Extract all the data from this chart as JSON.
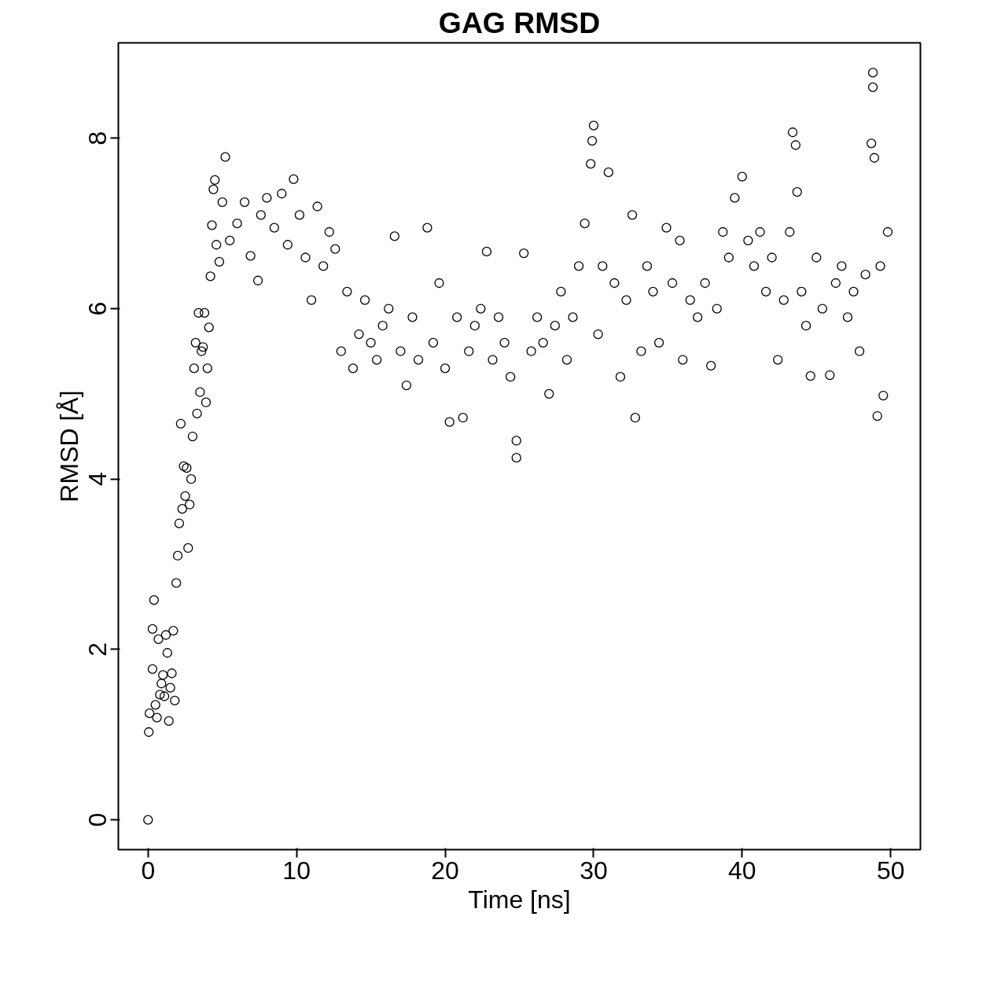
{
  "chart_data": {
    "type": "scatter",
    "title": "GAG RMSD",
    "xlabel": "Time [ns]",
    "ylabel": "RMSD [Å]",
    "xlim": [
      -2,
      52
    ],
    "ylim": [
      -0.35,
      9.12
    ],
    "xticks": [
      0,
      10,
      20,
      30,
      40,
      50
    ],
    "yticks": [
      0,
      2,
      4,
      6,
      8
    ],
    "marker": "circle",
    "series": [
      {
        "color": "#000000",
        "x": [
          0,
          0.05,
          0.1,
          0.3,
          0.3,
          0.4,
          0.5,
          0.6,
          0.7,
          0.8,
          0.9,
          1.0,
          1.1,
          1.2,
          1.3,
          1.4,
          1.5,
          1.6,
          1.7,
          1.8,
          1.9,
          2.0,
          2.1,
          2.2,
          2.3,
          2.4,
          2.5,
          2.6,
          2.7,
          2.8,
          2.9,
          3.0,
          3.1,
          3.2,
          3.3,
          3.4,
          3.5,
          3.6,
          3.7,
          3.8,
          3.9,
          4.0,
          4.1,
          4.2,
          4.3,
          4.4,
          4.5,
          4.6,
          4.8,
          5.0,
          5.2,
          5.5,
          6.0,
          6.5,
          6.9,
          7.4,
          7.6,
          8.0,
          8.5,
          9.0,
          9.4,
          9.8,
          10.2,
          10.6,
          11.0,
          11.4,
          11.8,
          12.2,
          12.6,
          13.0,
          13.4,
          13.8,
          14.2,
          14.6,
          15.0,
          15.4,
          15.8,
          16.2,
          16.6,
          17.0,
          17.4,
          17.8,
          18.2,
          18.8,
          19.2,
          19.6,
          20.0,
          20.3,
          20.8,
          21.2,
          21.6,
          22.0,
          22.4,
          22.8,
          23.2,
          23.6,
          24.0,
          24.4,
          24.8,
          24.8,
          25.3,
          25.8,
          26.2,
          26.6,
          27.0,
          27.4,
          27.8,
          28.2,
          28.6,
          29.0,
          29.4,
          29.8,
          29.9,
          30.0,
          30.3,
          30.6,
          31.0,
          31.4,
          31.8,
          32.2,
          32.6,
          32.8,
          33.2,
          33.6,
          34.0,
          34.4,
          34.9,
          35.3,
          35.8,
          36.0,
          36.5,
          37.0,
          37.5,
          37.9,
          38.3,
          38.7,
          39.1,
          39.5,
          40.0,
          40.4,
          40.8,
          41.2,
          41.6,
          42.0,
          42.4,
          42.8,
          43.2,
          43.4,
          43.6,
          43.7,
          44.0,
          44.3,
          44.6,
          45.0,
          45.4,
          45.9,
          46.3,
          46.7,
          47.1,
          47.5,
          47.9,
          48.3,
          48.7,
          48.8,
          48.8,
          48.9,
          49.1,
          49.3,
          49.5,
          49.8
        ],
        "values": [
          0,
          1.03,
          1.25,
          1.77,
          2.24,
          2.58,
          1.35,
          1.2,
          2.12,
          1.47,
          1.6,
          1.7,
          1.45,
          2.17,
          1.96,
          1.16,
          1.55,
          1.72,
          2.22,
          1.4,
          2.78,
          3.1,
          3.48,
          4.65,
          3.65,
          4.15,
          3.8,
          4.13,
          3.19,
          3.7,
          4.0,
          4.5,
          5.3,
          5.6,
          4.77,
          5.95,
          5.02,
          5.5,
          5.55,
          5.95,
          4.9,
          5.3,
          5.78,
          6.38,
          6.98,
          7.4,
          7.51,
          6.75,
          6.55,
          7.25,
          7.78,
          6.8,
          7.0,
          7.25,
          6.62,
          6.33,
          7.1,
          7.3,
          6.95,
          7.35,
          6.75,
          7.52,
          7.1,
          6.6,
          6.1,
          7.2,
          6.5,
          6.9,
          6.7,
          5.5,
          6.2,
          5.3,
          5.7,
          6.1,
          5.6,
          5.4,
          5.8,
          6.0,
          6.85,
          5.5,
          5.1,
          5.9,
          5.4,
          6.95,
          5.6,
          6.3,
          5.3,
          4.67,
          5.9,
          4.72,
          5.5,
          5.8,
          6.0,
          6.67,
          5.4,
          5.9,
          5.6,
          5.2,
          4.25,
          4.45,
          6.65,
          5.5,
          5.9,
          5.6,
          5.0,
          5.8,
          6.2,
          5.4,
          5.9,
          6.5,
          7.0,
          7.7,
          7.97,
          8.15,
          5.7,
          6.5,
          7.6,
          6.3,
          5.2,
          6.1,
          7.1,
          4.72,
          5.5,
          6.5,
          6.2,
          5.6,
          6.95,
          6.3,
          6.8,
          5.4,
          6.1,
          5.9,
          6.3,
          5.33,
          6.0,
          6.9,
          6.6,
          7.3,
          7.55,
          6.8,
          6.5,
          6.9,
          6.2,
          6.6,
          5.4,
          6.1,
          6.9,
          8.07,
          7.92,
          7.37,
          6.2,
          5.8,
          5.21,
          6.6,
          6.0,
          5.22,
          6.3,
          6.5,
          5.9,
          6.2,
          5.5,
          6.4,
          7.94,
          8.77,
          8.6,
          7.77,
          4.74,
          6.5,
          4.98,
          6.9
        ]
      }
    ]
  }
}
